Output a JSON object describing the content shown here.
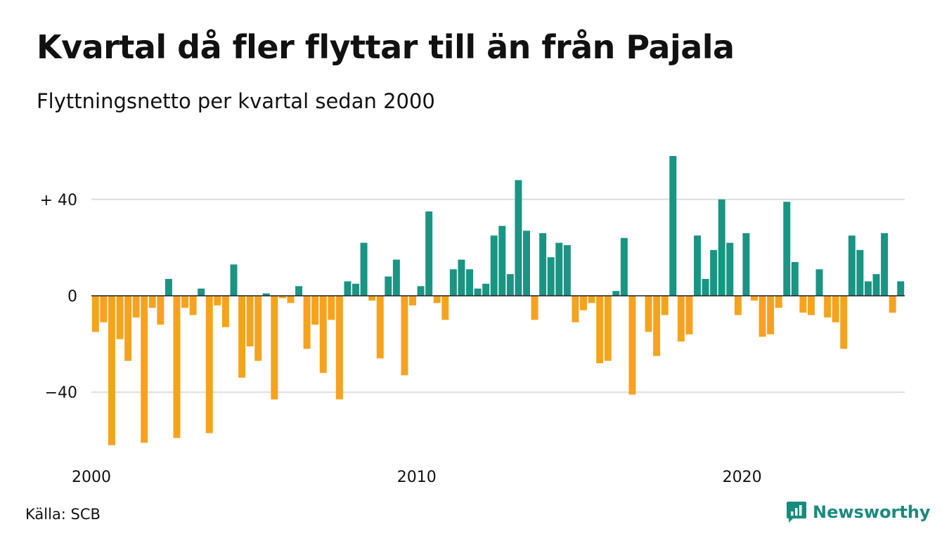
{
  "title": "Kvartal då fler flyttar till än från Pajala",
  "subtitle": "Flyttningsnetto per kvartal sedan 2000",
  "source": "Källa: SCB",
  "brand": {
    "name": "Newsworthy",
    "icon": "newsworthy-logo-icon"
  },
  "colors": {
    "positive": "#1a9483",
    "negative": "#f5a31f",
    "grid": "#dddddd",
    "zero": "#222222"
  },
  "chart_data": {
    "type": "bar",
    "title": "Kvartal då fler flyttar till än från Pajala",
    "subtitle": "Flyttningsnetto per kvartal sedan 2000",
    "xlabel": "",
    "ylabel": "",
    "ylim": [
      -63,
      60
    ],
    "y_ticks": [
      {
        "value": 40,
        "label": "+ 40"
      },
      {
        "value": 0,
        "label": "0"
      },
      {
        "value": -40,
        "label": "−40"
      }
    ],
    "x_ticks": [
      {
        "year": 2000,
        "label": "2000"
      },
      {
        "year": 2010,
        "label": "2010"
      },
      {
        "year": 2020,
        "label": "2020"
      }
    ],
    "start_year": 2000,
    "grid": true,
    "legend": "none",
    "values": [
      -15,
      -11,
      -62,
      -18,
      -27,
      -9,
      -61,
      -5,
      -12,
      7,
      -59,
      -5,
      -8,
      3,
      -57,
      -4,
      -13,
      13,
      -34,
      -21,
      -27,
      1,
      -43,
      -1,
      -3,
      4,
      -22,
      -12,
      -32,
      -10,
      -43,
      6,
      5,
      22,
      -2,
      -26,
      8,
      15,
      -33,
      -4,
      4,
      35,
      -3,
      -10,
      11,
      15,
      11,
      3,
      5,
      25,
      29,
      9,
      48,
      27,
      -10,
      26,
      16,
      22,
      21,
      -11,
      -6,
      -3,
      -28,
      -27,
      2,
      24,
      -41,
      0,
      -15,
      -25,
      -8,
      58,
      -19,
      -16,
      25,
      7,
      19,
      40,
      22,
      -8,
      26,
      -2,
      -17,
      -16,
      -5,
      39,
      14,
      -7,
      -8,
      11,
      -9,
      -11,
      -22,
      25,
      19,
      6,
      9,
      26,
      -7,
      6
    ]
  }
}
